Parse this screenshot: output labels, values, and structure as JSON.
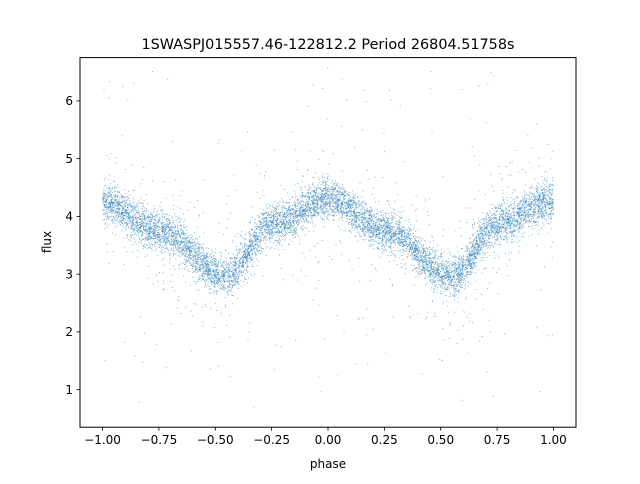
{
  "chart_data": {
    "type": "scatter",
    "title": "1SWASPJ015557.46-122812.2 Period 26804.51758s",
    "xlabel": "phase",
    "ylabel": "flux",
    "xlim": [
      -1.1,
      1.1
    ],
    "ylim": [
      0.35,
      6.75
    ],
    "xticks": [
      -1.0,
      -0.75,
      -0.5,
      -0.25,
      0.0,
      0.25,
      0.5,
      0.75,
      1.0
    ],
    "xtick_labels": [
      "−1.00",
      "−0.75",
      "−0.50",
      "−0.25",
      "0.00",
      "0.25",
      "0.50",
      "0.75",
      "1.00"
    ],
    "yticks": [
      1,
      2,
      3,
      4,
      5,
      6
    ],
    "ytick_labels": [
      "1",
      "2",
      "3",
      "4",
      "5",
      "6"
    ],
    "grid": false,
    "point_color": "#1f77b4",
    "phase_range": [
      -1.0,
      1.0
    ],
    "trend": {
      "description_points_x": [
        -1.0,
        -0.75,
        -0.45,
        -0.25,
        0.0,
        0.25,
        0.55,
        0.75,
        1.0
      ],
      "description_points_y": [
        4.25,
        3.75,
        2.95,
        3.85,
        4.3,
        3.75,
        2.95,
        3.85,
        4.3
      ]
    }
  }
}
